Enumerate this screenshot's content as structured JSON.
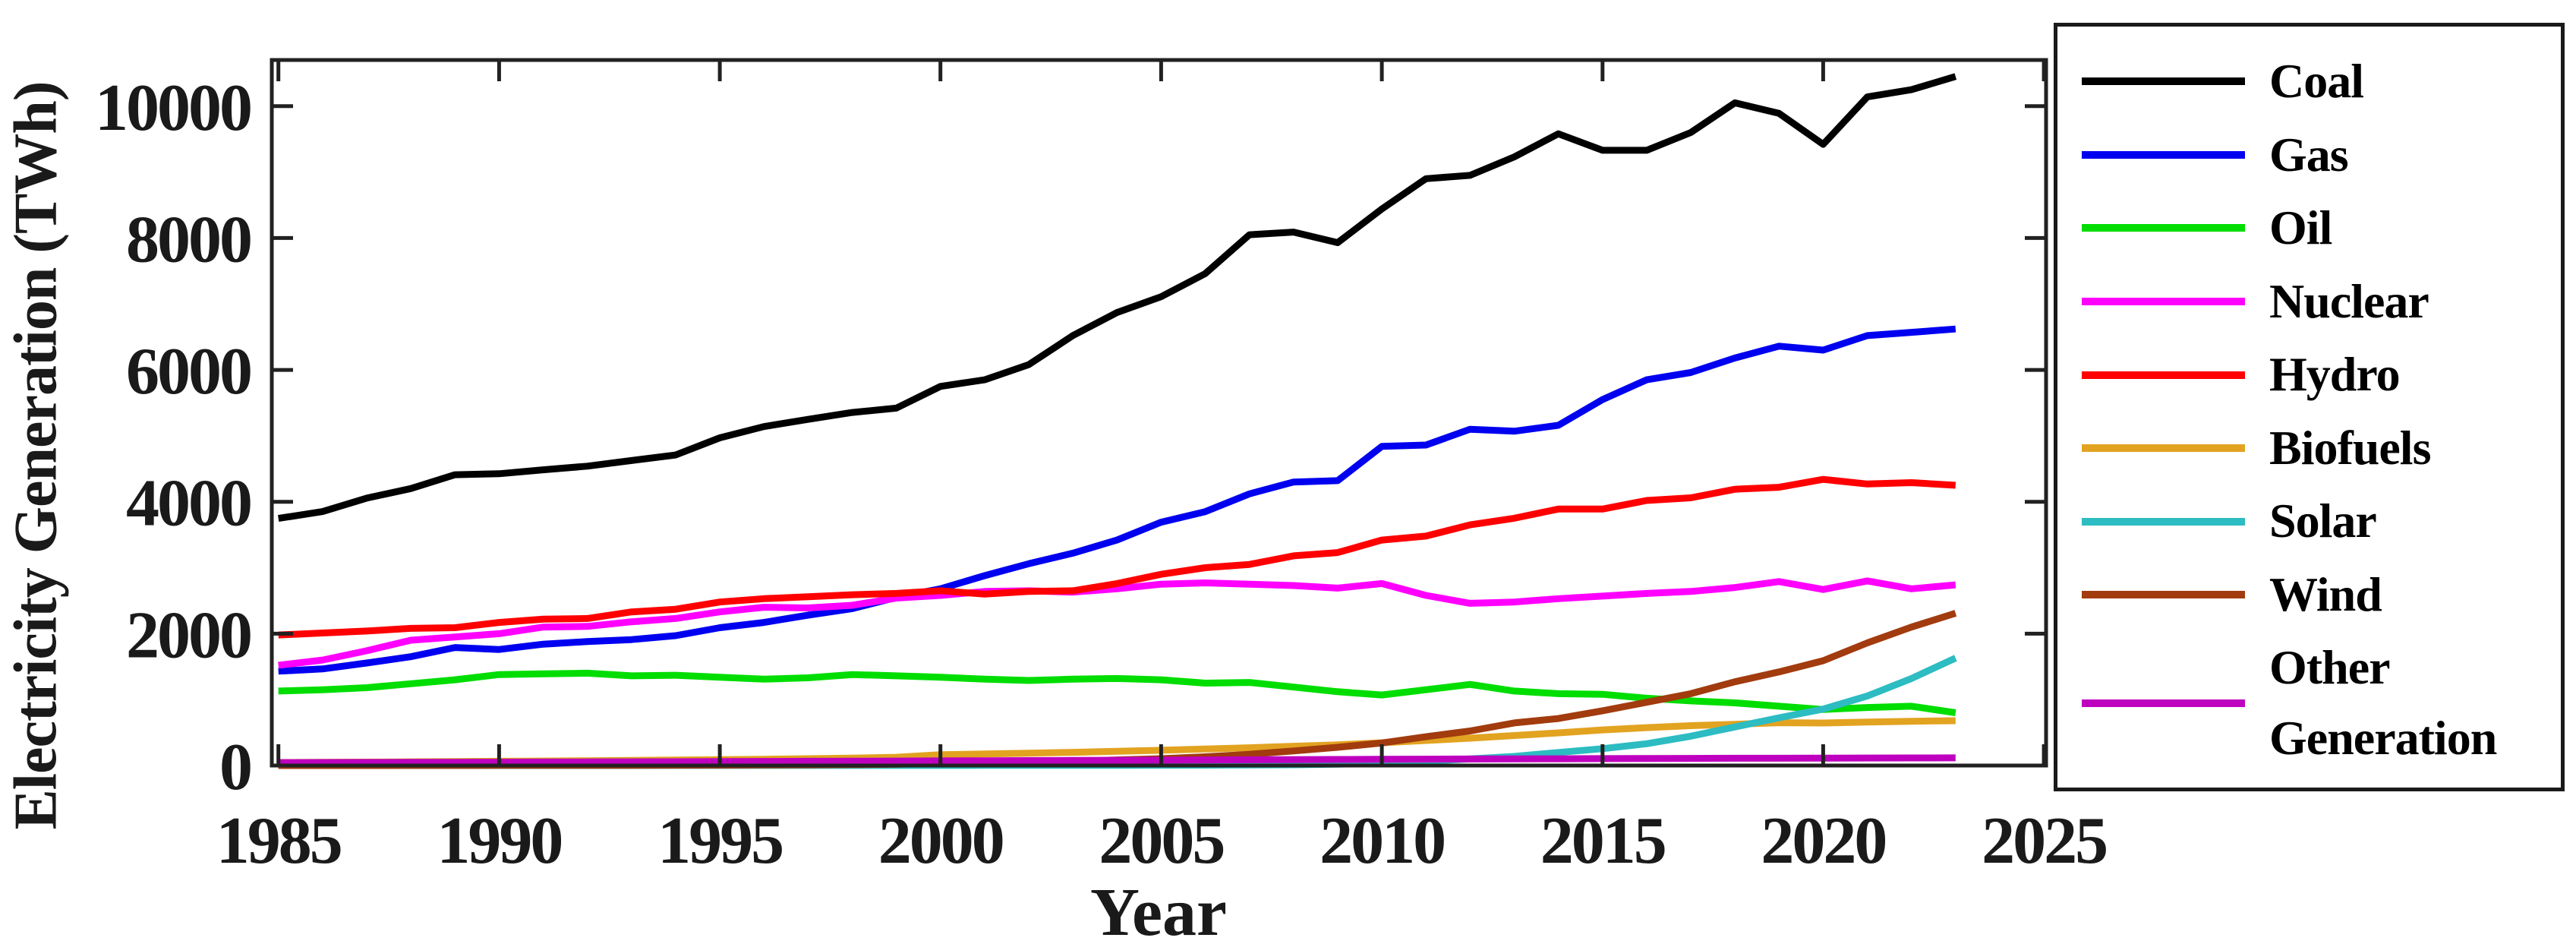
{
  "figure": {
    "y_axis_title": "Electricity Generation (TWh)",
    "x_axis_title": "Year",
    "background_color": "#ffffff",
    "axis_color": "#212121"
  },
  "chart_data": {
    "type": "line",
    "title": "",
    "xlabel": "Year",
    "ylabel": "Electricity Generation (TWh)",
    "xlim": [
      1984.85,
      2025.05
    ],
    "ylim": [
      0,
      10700
    ],
    "xticks": [
      1985,
      1990,
      1995,
      2000,
      2005,
      2010,
      2015,
      2020,
      2025
    ],
    "yticks": [
      0,
      2000,
      4000,
      6000,
      8000,
      10000
    ],
    "grid": false,
    "legend_position": "outside-right",
    "x": [
      1985,
      1986,
      1987,
      1988,
      1989,
      1990,
      1991,
      1992,
      1993,
      1994,
      1995,
      1996,
      1997,
      1998,
      1999,
      2000,
      2001,
      2002,
      2003,
      2004,
      2005,
      2006,
      2007,
      2008,
      2009,
      2010,
      2011,
      2012,
      2013,
      2014,
      2015,
      2016,
      2017,
      2018,
      2019,
      2020,
      2021,
      2022,
      2023
    ],
    "series": [
      {
        "name": "Coal",
        "color": "#000000",
        "values": [
          3748,
          3852,
          4055,
          4200,
          4410,
          4425,
          4485,
          4540,
          4625,
          4710,
          4970,
          5140,
          5250,
          5355,
          5420,
          5750,
          5850,
          6080,
          6520,
          6870,
          7110,
          7460,
          8050,
          8090,
          7930,
          8440,
          8900,
          8950,
          9230,
          9580,
          9330,
          9330,
          9600,
          10050,
          9890,
          9420,
          10140,
          10250,
          10450
        ]
      },
      {
        "name": "Gas",
        "color": "#0000F0",
        "values": [
          1430,
          1465,
          1555,
          1650,
          1790,
          1760,
          1840,
          1880,
          1910,
          1970,
          2090,
          2170,
          2280,
          2380,
          2550,
          2680,
          2880,
          3060,
          3220,
          3420,
          3690,
          3850,
          4120,
          4300,
          4320,
          4840,
          4860,
          5100,
          5070,
          5160,
          5550,
          5850,
          5960,
          6180,
          6360,
          6300,
          6520,
          6570,
          6620
        ]
      },
      {
        "name": "Oil",
        "color": "#00DD00",
        "values": [
          1130,
          1150,
          1180,
          1240,
          1300,
          1380,
          1390,
          1400,
          1360,
          1370,
          1340,
          1310,
          1330,
          1380,
          1360,
          1340,
          1310,
          1290,
          1310,
          1320,
          1300,
          1250,
          1260,
          1190,
          1120,
          1070,
          1150,
          1230,
          1130,
          1090,
          1080,
          1020,
          980,
          950,
          900,
          850,
          880,
          900,
          800
        ]
      },
      {
        "name": "Nuclear",
        "color": "#FF00FF",
        "values": [
          1520,
          1600,
          1740,
          1900,
          1950,
          2000,
          2100,
          2110,
          2180,
          2230,
          2330,
          2400,
          2390,
          2430,
          2540,
          2580,
          2640,
          2650,
          2630,
          2680,
          2750,
          2770,
          2750,
          2730,
          2690,
          2760,
          2580,
          2460,
          2480,
          2530,
          2570,
          2610,
          2640,
          2700,
          2790,
          2670,
          2800,
          2680,
          2740
        ]
      },
      {
        "name": "Hydro",
        "color": "#FF0000",
        "values": [
          1980,
          2010,
          2040,
          2080,
          2090,
          2170,
          2220,
          2230,
          2330,
          2370,
          2480,
          2530,
          2560,
          2590,
          2610,
          2650,
          2600,
          2640,
          2650,
          2760,
          2900,
          3000,
          3050,
          3180,
          3230,
          3420,
          3480,
          3650,
          3750,
          3890,
          3890,
          4020,
          4060,
          4190,
          4220,
          4340,
          4270,
          4290,
          4250
        ]
      },
      {
        "name": "Biofuels",
        "color": "#E2A321",
        "values": [
          45,
          48,
          52,
          56,
          60,
          64,
          68,
          72,
          78,
          84,
          90,
          96,
          104,
          112,
          125,
          165,
          175,
          188,
          200,
          215,
          232,
          250,
          270,
          292,
          315,
          345,
          380,
          415,
          455,
          495,
          540,
          575,
          605,
          625,
          650,
          645,
          660,
          672,
          680
        ]
      },
      {
        "name": "Solar",
        "color": "#2CBCC2",
        "values": [
          0,
          0,
          0,
          0,
          0,
          0,
          0,
          0,
          0,
          1,
          1,
          1,
          1,
          1,
          1,
          1,
          2,
          2,
          3,
          4,
          5,
          6,
          8,
          12,
          21,
          33,
          65,
          100,
          138,
          198,
          256,
          330,
          445,
          585,
          724,
          856,
          1055,
          1320,
          1630
        ]
      },
      {
        "name": "Wind",
        "color": "#A23B0E",
        "values": [
          0,
          0,
          0,
          1,
          1,
          2,
          2,
          3,
          3,
          5,
          6,
          8,
          10,
          14,
          21,
          31,
          38,
          52,
          63,
          85,
          104,
          133,
          171,
          221,
          276,
          342,
          437,
          524,
          646,
          713,
          831,
          959,
          1090,
          1270,
          1420,
          1590,
          1860,
          2100,
          2310
        ]
      },
      {
        "name": "Other Generation",
        "color": "#BE01BE",
        "values": [
          45,
          46,
          47,
          48,
          50,
          51,
          53,
          54,
          56,
          58,
          60,
          62,
          64,
          66,
          68,
          70,
          72,
          75,
          77,
          80,
          82,
          85,
          87,
          90,
          92,
          95,
          97,
          99,
          101,
          103,
          105,
          107,
          108,
          110,
          111,
          112,
          114,
          115,
          116
        ]
      }
    ]
  }
}
